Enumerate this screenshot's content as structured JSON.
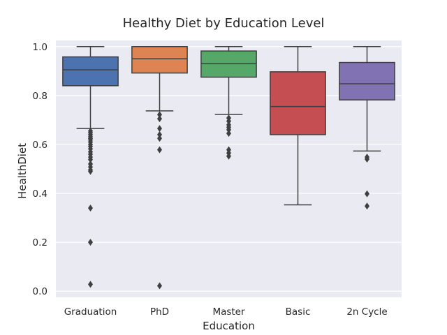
{
  "chart_data": {
    "type": "box",
    "title": "Healthy Diet by Education Level",
    "xlabel": "Education",
    "ylabel": "HealthDiet",
    "ylim": [
      -0.025,
      1.025
    ],
    "yticks": [
      0.0,
      0.2,
      0.4,
      0.6,
      0.8,
      1.0
    ],
    "ytick_labels": [
      "0.0",
      "0.2",
      "0.4",
      "0.6",
      "0.8",
      "1.0"
    ],
    "grid": true,
    "categories": [
      "Graduation",
      "PhD",
      "Master",
      "Basic",
      "2n Cycle"
    ],
    "series": [
      {
        "category": "Graduation",
        "color": "#4c72b0",
        "whisker_low": 0.665,
        "q1": 0.84,
        "median": 0.905,
        "q3": 0.958,
        "whisker_high": 1.0,
        "outliers": [
          0.655,
          0.648,
          0.64,
          0.632,
          0.625,
          0.618,
          0.61,
          0.6,
          0.592,
          0.582,
          0.57,
          0.56,
          0.548,
          0.538,
          0.52,
          0.508,
          0.496,
          0.49,
          0.34,
          0.2,
          0.028
        ]
      },
      {
        "category": "PhD",
        "color": "#dd8452",
        "whisker_low": 0.737,
        "q1": 0.892,
        "median": 0.95,
        "q3": 1.0,
        "whisker_high": 1.0,
        "outliers": [
          0.722,
          0.705,
          0.665,
          0.64,
          0.625,
          0.578,
          0.022
        ]
      },
      {
        "category": "Master",
        "color": "#55a868",
        "whisker_low": 0.723,
        "q1": 0.875,
        "median": 0.93,
        "q3": 0.982,
        "whisker_high": 1.0,
        "outliers": [
          0.708,
          0.695,
          0.68,
          0.67,
          0.66,
          0.645,
          0.578,
          0.565,
          0.552
        ]
      },
      {
        "category": "Basic",
        "color": "#c44e52",
        "whisker_low": 0.353,
        "q1": 0.64,
        "median": 0.755,
        "q3": 0.897,
        "whisker_high": 1.0,
        "outliers": []
      },
      {
        "category": "2n Cycle",
        "color": "#8172b3",
        "whisker_low": 0.573,
        "q1": 0.782,
        "median": 0.848,
        "q3": 0.935,
        "whisker_high": 1.0,
        "outliers": [
          0.548,
          0.54,
          0.398,
          0.348
        ]
      }
    ]
  }
}
